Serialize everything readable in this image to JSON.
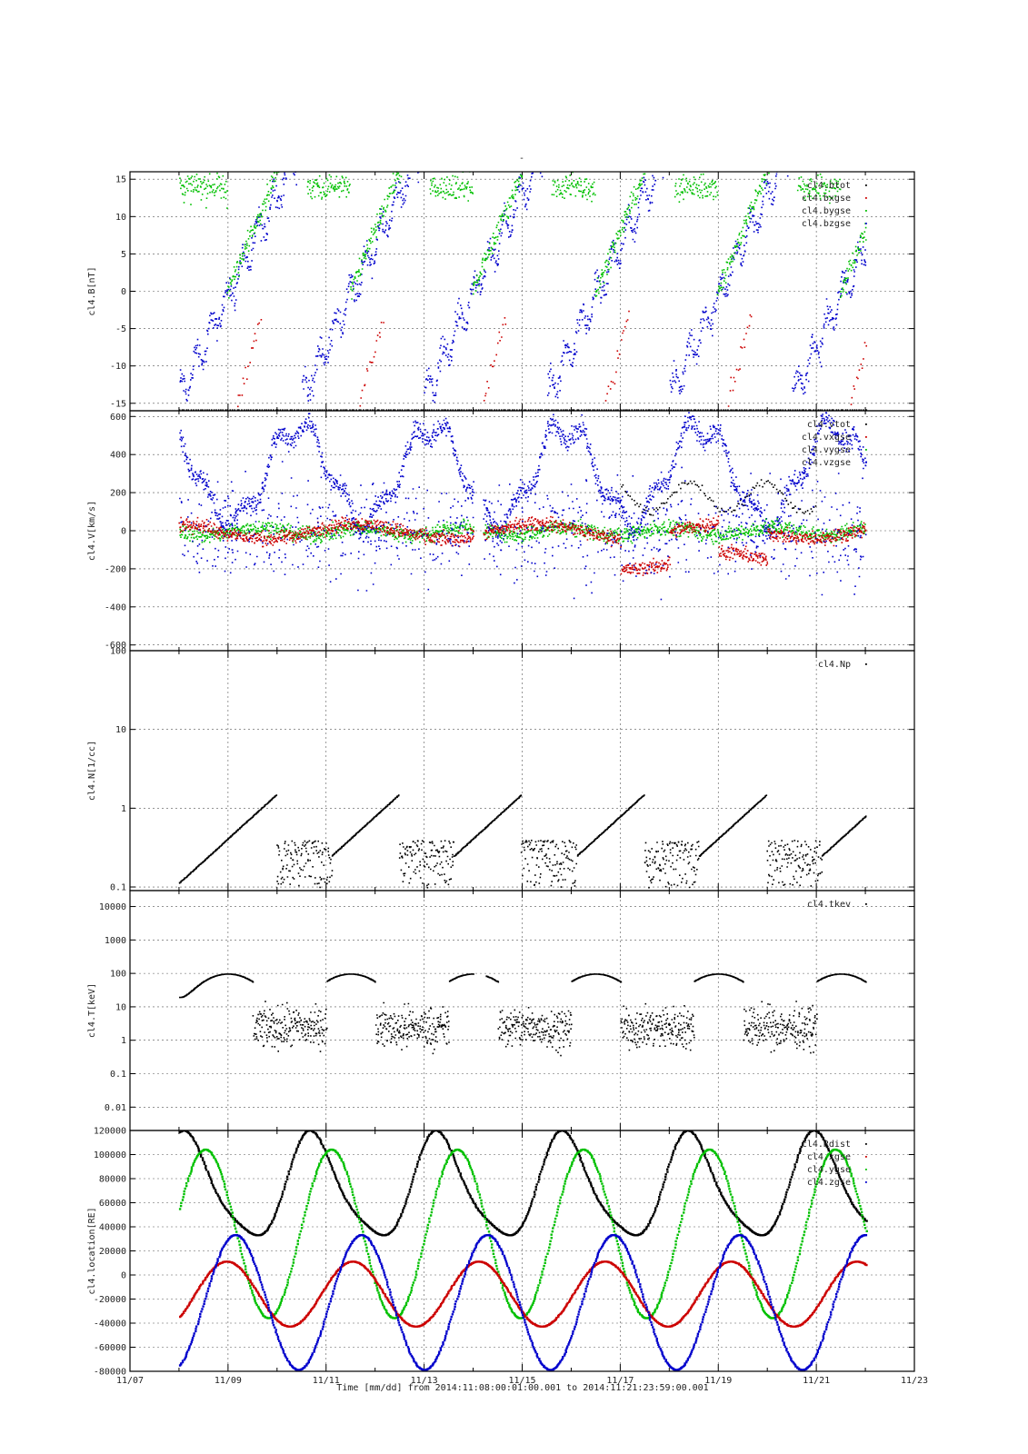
{
  "chart_data": {
    "type": "scatter",
    "title": "-",
    "xlabel": "Time [mm/dd]  from 2014:11:08:00:01:00.001  to  2014:11:21:23:59:00.001",
    "x_ticks": [
      "11/07",
      "11/09",
      "11/11",
      "11/13",
      "11/15",
      "11/17",
      "11/19",
      "11/21",
      "11/23"
    ],
    "xlim": [
      "2014-11-07",
      "2014-11-23"
    ],
    "data_range": [
      "2014-11-08T00:01:00",
      "2014-11-21T23:59:00"
    ],
    "grid": true,
    "legend_position": "top-right",
    "colors": {
      "black": "#000000",
      "red": "#cc0000",
      "green": "#00c000",
      "blue": "#0000cc"
    },
    "panels": [
      {
        "ylabel": "cl4.B[nT]",
        "ylim": [
          -16,
          16
        ],
        "y_ticks": [
          "15",
          "10",
          "5",
          "0",
          "-5",
          "-10",
          "-15"
        ],
        "series": [
          {
            "name": "cl4.btot",
            "color": "#000000"
          },
          {
            "name": "cl4.bxgse",
            "color": "#cc0000"
          },
          {
            "name": "cl4.bygse",
            "color": "#00c000"
          },
          {
            "name": "cl4.bzgse",
            "color": "#0000cc"
          }
        ]
      },
      {
        "ylabel": "cl4.V[km/s]",
        "ylim": [
          -630,
          630
        ],
        "y_ticks": [
          "600",
          "400",
          "200",
          "0",
          "-200",
          "-400",
          "-600"
        ],
        "series": [
          {
            "name": "cl4.vtot",
            "color": "#000000"
          },
          {
            "name": "cl4.vxgse",
            "color": "#cc0000"
          },
          {
            "name": "cl4.vygse",
            "color": "#00c000"
          },
          {
            "name": "cl4.vzgse",
            "color": "#0000cc"
          }
        ]
      },
      {
        "ylabel": "cl4.N[1/cc]",
        "ylim": [
          0.09,
          100
        ],
        "yscale": "log",
        "y_ticks": [
          "100",
          "10",
          "1",
          "0.1"
        ],
        "series": [
          {
            "name": "cl4.Np",
            "color": "#000000"
          }
        ]
      },
      {
        "ylabel": "cl4.T[keV]",
        "ylim": [
          0.002,
          30000
        ],
        "yscale": "log",
        "y_ticks": [
          "10000",
          "1000",
          "100",
          "10",
          "1",
          "0.1",
          "0.01"
        ],
        "series": [
          {
            "name": "cl4.tkev",
            "color": "#000000"
          }
        ]
      },
      {
        "ylabel": "cl4.location[RE]",
        "ylim": [
          -80000,
          120000
        ],
        "y_ticks": [
          "120000",
          "100000",
          "80000",
          "60000",
          "40000",
          "20000",
          "0",
          "-20000",
          "-40000",
          "-60000",
          "-80000"
        ],
        "series": [
          {
            "name": "cl4.Rdist",
            "color": "#000000"
          },
          {
            "name": "cl4.xgse",
            "color": "#cc0000"
          },
          {
            "name": "cl4.ygse",
            "color": "#00c000"
          },
          {
            "name": "cl4.zgse",
            "color": "#0000cc"
          }
        ]
      }
    ]
  }
}
